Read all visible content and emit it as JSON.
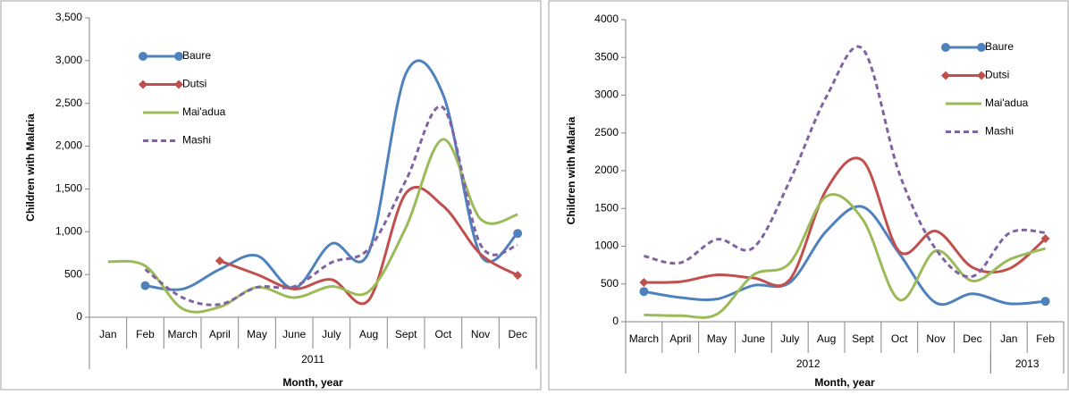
{
  "chart_data": [
    {
      "type": "line",
      "y_label": "Children with Malaria",
      "x_label": "Month, year",
      "categories": [
        "Jan",
        "Feb",
        "March",
        "April",
        "May",
        "June",
        "July",
        "Aug",
        "Sept",
        "Oct",
        "Nov",
        "Dec"
      ],
      "groups": [
        {
          "label": "2011",
          "size": 12
        }
      ],
      "ylim": [
        0,
        3500
      ],
      "yticks": [
        0,
        500,
        {
          "value": 1000,
          "label": "1,000"
        },
        {
          "value": 1500,
          "label": "1,500"
        },
        {
          "value": 2000,
          "label": "2,000"
        },
        {
          "value": 2500,
          "label": "2,500"
        },
        {
          "value": 3000,
          "label": "3,000"
        },
        {
          "value": 3500,
          "label": "3,500"
        }
      ],
      "series": [
        {
          "name": "Baure",
          "color": "#4f81bd",
          "marker": "circle",
          "values": [
            null,
            370,
            330,
            560,
            720,
            340,
            860,
            760,
            2850,
            2600,
            730,
            980
          ]
        },
        {
          "name": "Dutsi",
          "color": "#c0504d",
          "marker": "diamond",
          "values": [
            null,
            null,
            null,
            660,
            500,
            330,
            440,
            200,
            1450,
            1300,
            740,
            490
          ]
        },
        {
          "name": "Mai'adua",
          "color": "#9bbb59",
          "values": [
            650,
            600,
            100,
            120,
            350,
            230,
            360,
            300,
            1050,
            2080,
            1150,
            1200
          ]
        },
        {
          "name": "Mashi",
          "color": "#8064a2",
          "dashed": true,
          "values": [
            null,
            560,
            230,
            150,
            350,
            360,
            640,
            800,
            1600,
            2450,
            850,
            840
          ]
        }
      ]
    },
    {
      "type": "line",
      "y_label": "Children with Malaria",
      "x_label": "Month, year",
      "categories": [
        "March",
        "April",
        "May",
        "June",
        "July",
        "Aug",
        "Sept",
        "Oct",
        "Nov",
        "Dec",
        "Jan",
        "Feb"
      ],
      "groups": [
        {
          "label": "2012",
          "size": 10
        },
        {
          "label": "2013",
          "size": 2
        }
      ],
      "ylim": [
        0,
        4000
      ],
      "yticks": [
        0,
        500,
        1000,
        1500,
        2000,
        2500,
        3000,
        3500,
        4000
      ],
      "series": [
        {
          "name": "Baure",
          "color": "#4f81bd",
          "marker": "circle",
          "values": [
            400,
            320,
            300,
            480,
            520,
            1200,
            1520,
            900,
            250,
            370,
            240,
            270
          ]
        },
        {
          "name": "Dutsi",
          "color": "#c0504d",
          "marker": "diamond",
          "values": [
            520,
            530,
            620,
            580,
            560,
            1750,
            2130,
            930,
            1200,
            720,
            700,
            1100
          ]
        },
        {
          "name": "Mai'adua",
          "color": "#9bbb59",
          "values": [
            90,
            80,
            100,
            620,
            780,
            1660,
            1350,
            290,
            940,
            540,
            820,
            970
          ]
        },
        {
          "name": "Mashi",
          "color": "#8064a2",
          "dashed": true,
          "values": [
            870,
            780,
            1090,
            980,
            1870,
            2980,
            3610,
            1960,
            960,
            600,
            1170,
            1180
          ]
        }
      ]
    }
  ]
}
